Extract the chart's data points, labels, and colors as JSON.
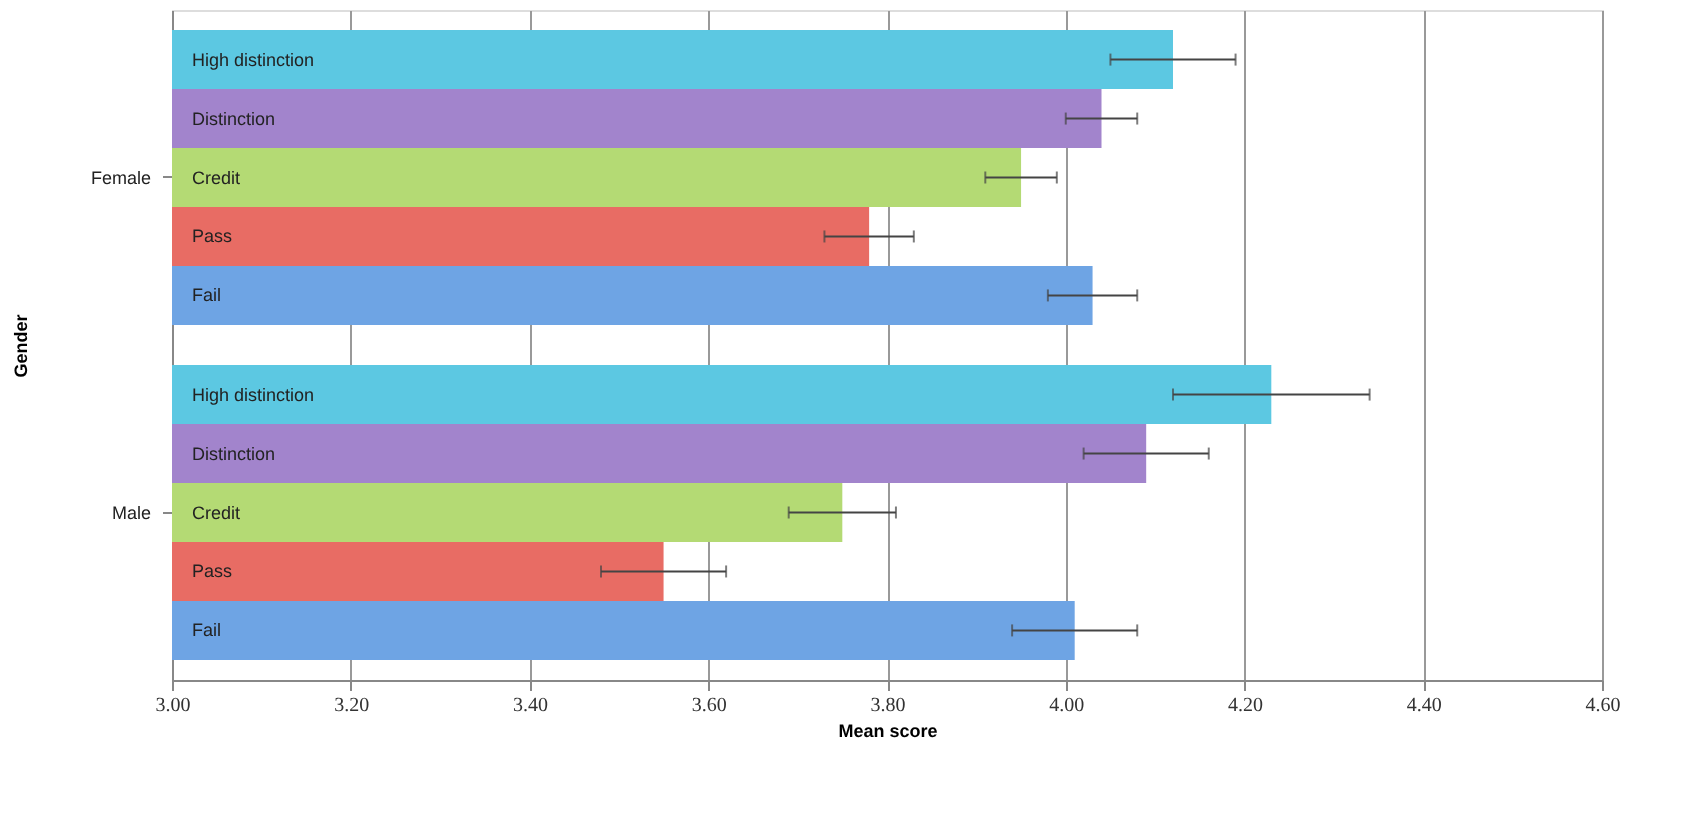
{
  "chart_data": {
    "type": "bar",
    "orientation": "horizontal",
    "xlabel": "Mean score",
    "ylabel": "Gender",
    "categories": [
      "Female",
      "Male"
    ],
    "series": [
      {
        "name": "High distinction",
        "color": "#5cc8e2",
        "values": [
          4.12,
          4.23
        ],
        "errors": [
          0.07,
          0.11
        ]
      },
      {
        "name": "Distinction",
        "color": "#a284cc",
        "values": [
          4.04,
          4.09
        ],
        "errors": [
          0.04,
          0.07
        ]
      },
      {
        "name": "Credit",
        "color": "#b4da74",
        "values": [
          3.95,
          3.75
        ],
        "errors": [
          0.04,
          0.06
        ]
      },
      {
        "name": "Pass",
        "color": "#e86c64",
        "values": [
          3.78,
          3.55
        ],
        "errors": [
          0.05,
          0.07
        ]
      },
      {
        "name": "Fail",
        "color": "#6ea4e4",
        "values": [
          4.03,
          4.01
        ],
        "errors": [
          0.05,
          0.07
        ]
      }
    ],
    "xlim": [
      3.0,
      4.6
    ],
    "xticks": [
      {
        "value": 3.0,
        "label": "3.00"
      },
      {
        "value": 3.2,
        "label": "3.20"
      },
      {
        "value": 3.4,
        "label": "3.40"
      },
      {
        "value": 3.6,
        "label": "3.60"
      },
      {
        "value": 3.8,
        "label": "3.80"
      },
      {
        "value": 4.0,
        "label": "4.00"
      },
      {
        "value": 4.2,
        "label": "4.20"
      },
      {
        "value": 4.4,
        "label": "4.40"
      },
      {
        "value": 4.6,
        "label": "4.60"
      }
    ],
    "grid": "x",
    "legend": false
  }
}
